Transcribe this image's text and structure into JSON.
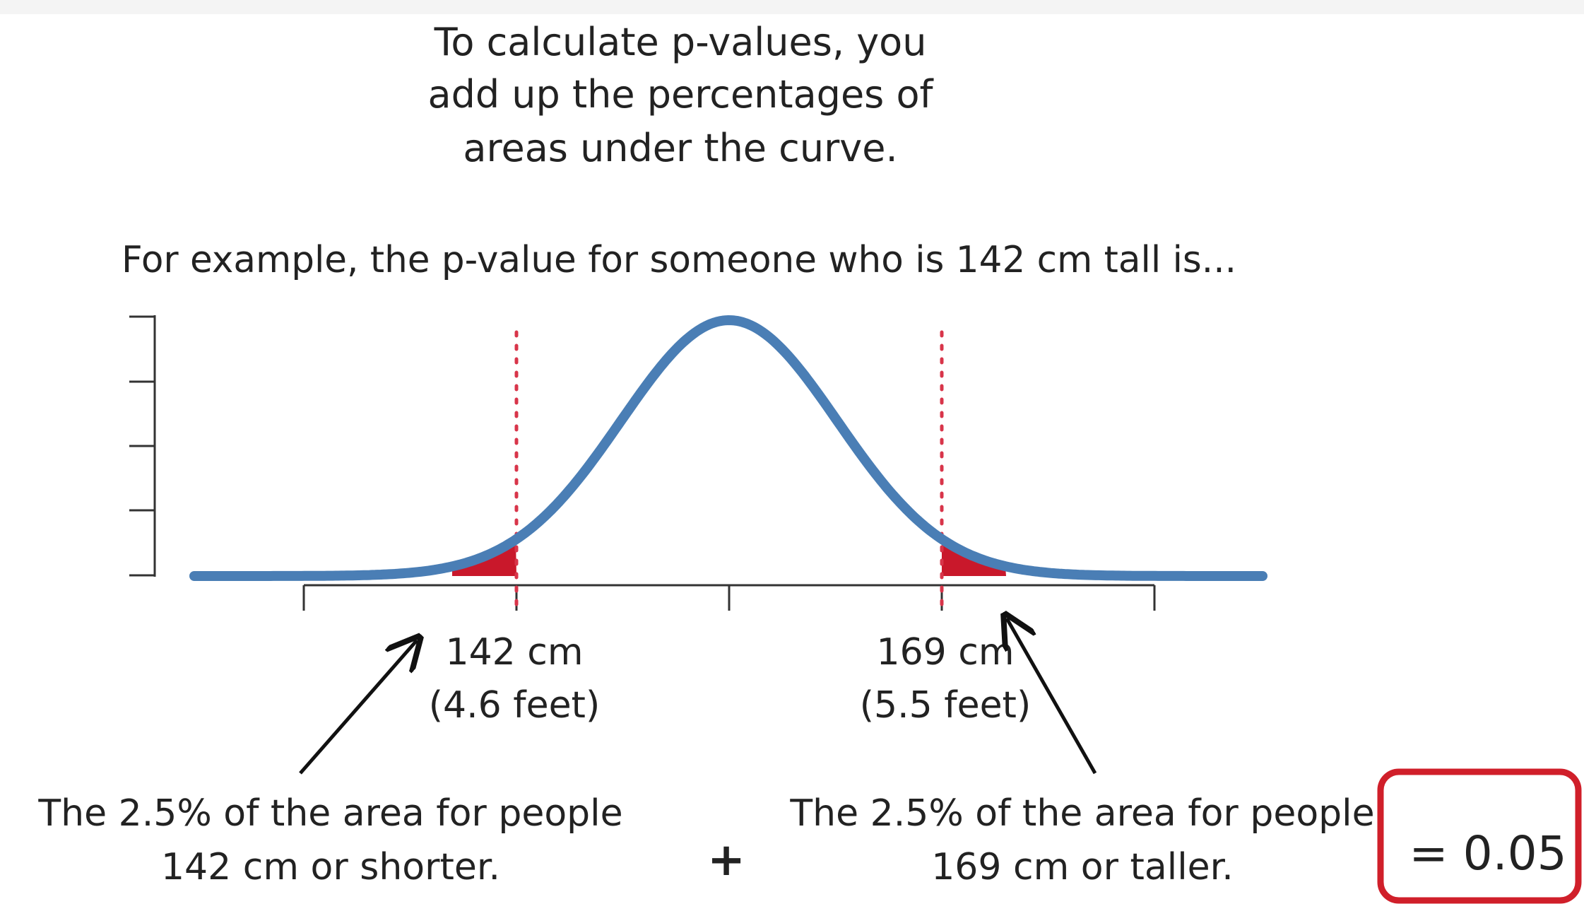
{
  "heading": {
    "line1": "To calculate p-values, you",
    "line2": "add up the percentages of",
    "line3": "areas under the curve."
  },
  "example_text": "For example, the p-value for someone who is 142 cm tall is...",
  "markers": {
    "left": {
      "value": "142 cm",
      "feet": "(4.6 feet)"
    },
    "right": {
      "value": "169 cm",
      "feet": "(5.5 feet)"
    }
  },
  "captions": {
    "left": {
      "line1": "The 2.5% of the area for people",
      "line2": "142 cm or shorter."
    },
    "plus": "+",
    "right": {
      "line1": "The 2.5% of the area for people",
      "line2": "169 cm or taller."
    }
  },
  "result": "= 0.05",
  "colors": {
    "curve": "#4a7eb5",
    "tail_fill": "#c9182b",
    "marker_line": "#d8354a",
    "result_box": "#d01f2a",
    "text": "#222222",
    "axis": "#333333"
  }
}
